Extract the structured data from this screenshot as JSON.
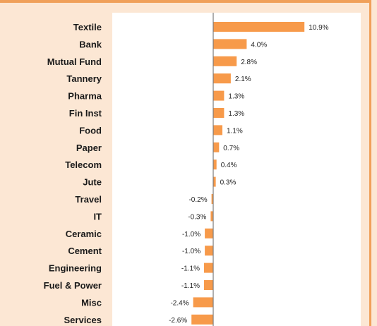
{
  "colors": {
    "background": "#fce7d4",
    "plot_area": "#ffffff",
    "bar": "#f79a4a",
    "border": "#f0a05a",
    "axis": "#7a7a7a"
  },
  "chart_data": {
    "type": "bar",
    "orientation": "horizontal",
    "categories": [
      "Textile",
      "Bank",
      "Mutual Fund",
      "Tannery",
      "Pharma",
      "Fin Inst",
      "Food",
      "Paper",
      "Telecom",
      "Jute",
      "Travel",
      "IT",
      "Ceramic",
      "Cement",
      "Engineering",
      "Fuel & Power",
      "Misc",
      "Services"
    ],
    "values": [
      10.9,
      4.0,
      2.8,
      2.1,
      1.3,
      1.3,
      1.1,
      0.7,
      0.4,
      0.3,
      -0.2,
      -0.3,
      -1.0,
      -1.0,
      -1.1,
      -1.1,
      -2.4,
      -2.6
    ],
    "value_labels": [
      "10.9%",
      "4.0%",
      "2.8%",
      "2.1%",
      "1.3%",
      "1.3%",
      "1.1%",
      "0.7%",
      "0.4%",
      "0.3%",
      "-0.2%",
      "-0.3%",
      "-1.0%",
      "-1.0%",
      "-1.1%",
      "-1.1%",
      "-2.4%",
      "-2.6%"
    ],
    "xlim": [
      -12,
      12
    ],
    "grid": false,
    "legend": "none"
  }
}
